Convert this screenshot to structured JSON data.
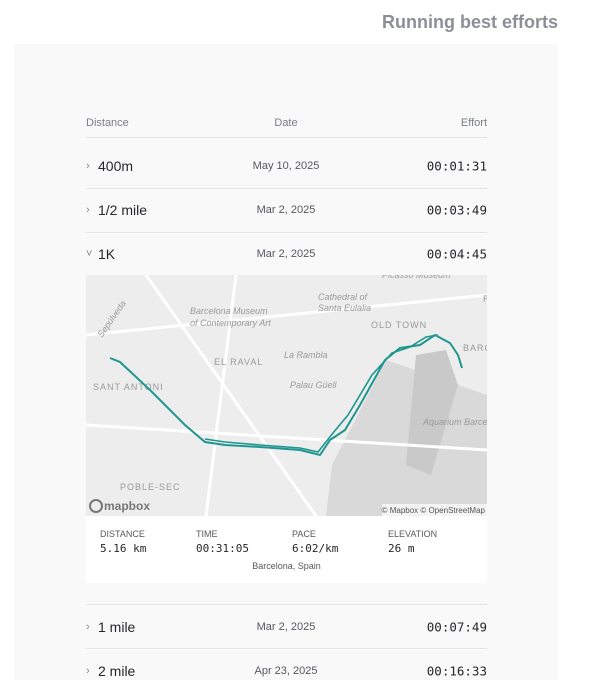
{
  "header": {
    "title": "Running best efforts"
  },
  "table": {
    "columns": [
      "Distance",
      "Date",
      "Effort"
    ],
    "rows": [
      [
        "400m",
        "May 10, 2025",
        "00:01:31"
      ],
      [
        "1/2 mile",
        "Mar 2, 2025",
        "00:03:49"
      ],
      [
        "1K",
        "Mar 2, 2025",
        "00:04:45"
      ],
      [
        "1 mile",
        "Mar 2, 2025",
        "00:07:49"
      ],
      [
        "2 mile",
        "Apr 23, 2025",
        "00:16:33"
      ]
    ]
  },
  "detail": {
    "stats": [
      {
        "label": "DISTANCE",
        "value": "5.16 km"
      },
      {
        "label": "TIME",
        "value": "00:31:05"
      },
      {
        "label": "PACE",
        "value": "6:02/km"
      },
      {
        "label": "ELEVATION",
        "value": "26 m"
      }
    ],
    "location": "Barcelona, Spain",
    "map": {
      "labels": [
        "Picasso Museum",
        "Barcelona Museum",
        "of Contemporary Art",
        "Cathedral of",
        "Santa Eulalia",
        "OLD TOWN",
        "Sepúlveda",
        "EL RAVAL",
        "La Rambla",
        "BARC",
        "SANT ANTONI",
        "Palau Güell",
        "Aquarium Barcelona",
        "POBLE-SEC",
        "R"
      ],
      "logo": "mapbox",
      "attribution": "© Mapbox © OpenStreetMap"
    }
  }
}
